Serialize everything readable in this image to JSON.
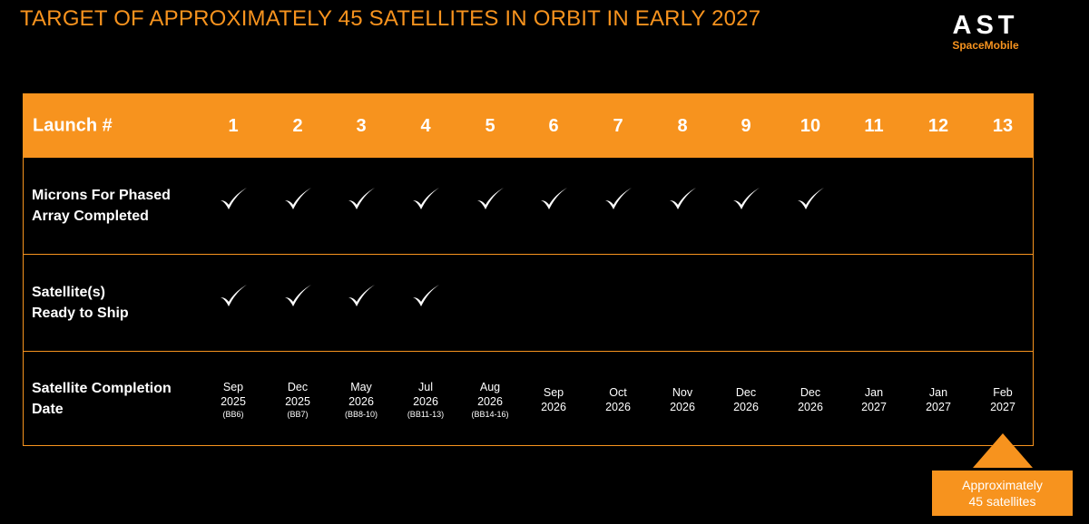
{
  "header": {
    "title": "TARGET OF APPROXIMATELY 45 SATELLITES IN ORBIT IN EARLY 2027",
    "logo_mark": "AST",
    "logo_sub": "SpaceMobile"
  },
  "colors": {
    "accent": "#f7931e",
    "background": "#000000",
    "text": "#ffffff"
  },
  "table": {
    "header_label": "Launch #",
    "launches": [
      "1",
      "2",
      "3",
      "4",
      "5",
      "6",
      "7",
      "8",
      "9",
      "10",
      "11",
      "12",
      "13"
    ],
    "rows": [
      {
        "label": "Microns For Phased\nArray Completed",
        "checks": [
          true,
          true,
          true,
          true,
          true,
          true,
          true,
          true,
          true,
          true,
          false,
          false,
          false
        ],
        "icon": "checkmark-icon"
      },
      {
        "label": "Satellite(s)\nReady to Ship",
        "checks": [
          true,
          true,
          true,
          true,
          false,
          false,
          false,
          false,
          false,
          false,
          false,
          false,
          false
        ],
        "icon": "checkmark-icon"
      }
    ],
    "completion_label": "Satellite Completion\nDate",
    "dates": [
      {
        "month": "Sep",
        "year": "2025",
        "sub": "(BB6)"
      },
      {
        "month": "Dec",
        "year": "2025",
        "sub": "(BB7)"
      },
      {
        "month": "May",
        "year": "2026",
        "sub": "(BB8-10)"
      },
      {
        "month": "Jul",
        "year": "2026",
        "sub": "(BB11-13)"
      },
      {
        "month": "Aug",
        "year": "2026",
        "sub": "(BB14-16)"
      },
      {
        "month": "Sep",
        "year": "2026",
        "sub": ""
      },
      {
        "month": "Oct",
        "year": "2026",
        "sub": ""
      },
      {
        "month": "Nov",
        "year": "2026",
        "sub": ""
      },
      {
        "month": "Dec",
        "year": "2026",
        "sub": ""
      },
      {
        "month": "Dec",
        "year": "2026",
        "sub": ""
      },
      {
        "month": "Jan",
        "year": "2027",
        "sub": ""
      },
      {
        "month": "Jan",
        "year": "2027",
        "sub": ""
      },
      {
        "month": "Feb",
        "year": "2027",
        "sub": ""
      }
    ]
  },
  "callout": {
    "text": "Approximately\n45 satellites",
    "icon": "triangle-up-icon"
  }
}
